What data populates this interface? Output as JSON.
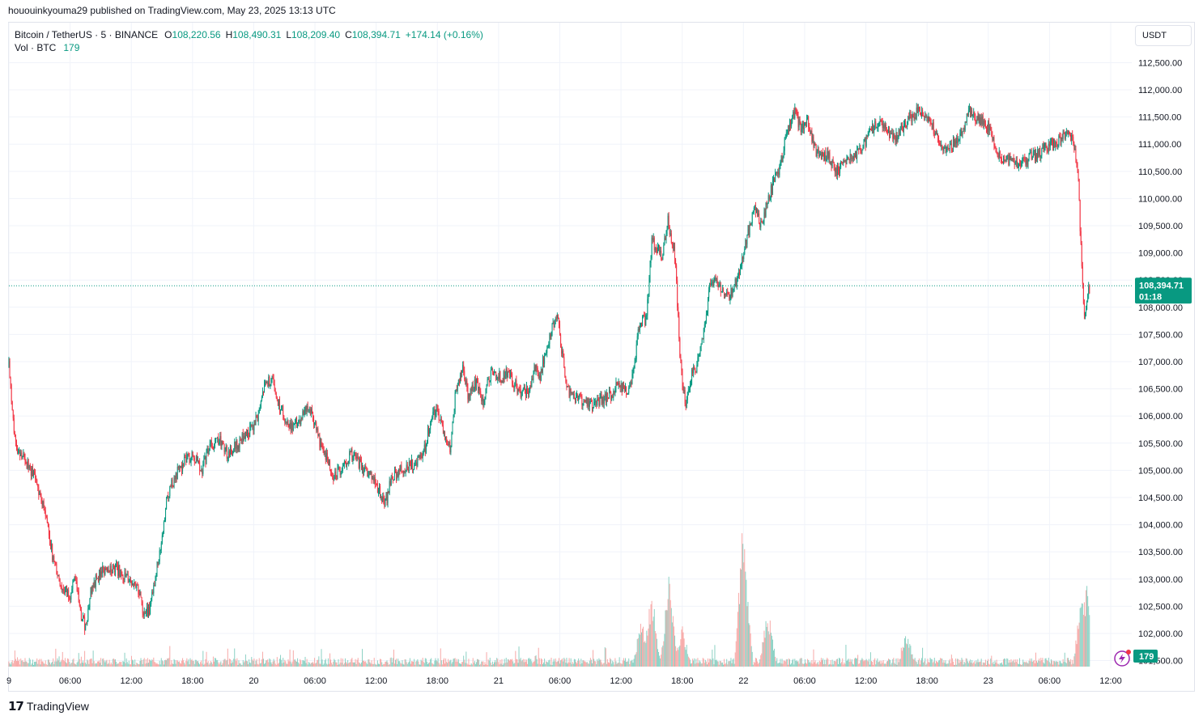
{
  "publish_info": "hououinkyouma29 published on TradingView.com, May 23, 2025 13:13 UTC",
  "legend": {
    "symbol": "Bitcoin / TetherUS · 5 · BINANCE",
    "open_label": "O",
    "open": "108,220.56",
    "high_label": "H",
    "high": "108,490.31",
    "low_label": "L",
    "low": "108,209.40",
    "close_label": "C",
    "close": "108,394.71",
    "change": "+174.14 (+0.16%)",
    "vol_label": "Vol · BTC",
    "vol_value": "179"
  },
  "currency_button": "USDT",
  "last_price": {
    "price": "108,394.71",
    "countdown": "01:18"
  },
  "volume_badge": "179",
  "branding": "TradingView",
  "colors": {
    "up": "#089981",
    "down": "#f23645",
    "up_vol": "#8cd1c4",
    "down_vol": "#f7a9a7",
    "grid": "#f0f3fa",
    "price_label_bg": "#089981"
  },
  "chart_data": {
    "type": "candlestick",
    "symbol": "Bitcoin / TetherUS",
    "interval": "5",
    "exchange": "BINANCE",
    "y_ticks": [
      101500,
      102000,
      102500,
      103000,
      103500,
      104000,
      104500,
      105000,
      105500,
      106000,
      106500,
      107000,
      107500,
      108000,
      108500,
      109000,
      109500,
      110000,
      110500,
      111000,
      111500,
      112000,
      112500
    ],
    "y_tick_labels": [
      "101,500.00",
      "102,000.00",
      "102,500.00",
      "103,000.00",
      "103,500.00",
      "104,000.00",
      "104,500.00",
      "105,000.00",
      "105,500.00",
      "106,000.00",
      "106,500.00",
      "107,000.00",
      "107,500.00",
      "108,000.00",
      "108,500.00",
      "109,000.00",
      "109,500.00",
      "110,000.00",
      "110,500.00",
      "111,000.00",
      "111,500.00",
      "112,000.00",
      "112,500.00"
    ],
    "x_ticks": [
      {
        "label": "9",
        "hours": 0
      },
      {
        "label": "06:00",
        "hours": 6
      },
      {
        "label": "12:00",
        "hours": 12
      },
      {
        "label": "18:00",
        "hours": 18
      },
      {
        "label": "20",
        "hours": 24
      },
      {
        "label": "06:00",
        "hours": 30
      },
      {
        "label": "12:00",
        "hours": 36
      },
      {
        "label": "18:00",
        "hours": 42
      },
      {
        "label": "21",
        "hours": 48
      },
      {
        "label": "06:00",
        "hours": 54
      },
      {
        "label": "12:00",
        "hours": 60
      },
      {
        "label": "18:00",
        "hours": 66
      },
      {
        "label": "22",
        "hours": 72
      },
      {
        "label": "06:00",
        "hours": 78
      },
      {
        "label": "12:00",
        "hours": 84
      },
      {
        "label": "18:00",
        "hours": 90
      },
      {
        "label": "23",
        "hours": 96
      },
      {
        "label": "06:00",
        "hours": 102
      },
      {
        "label": "12:00",
        "hours": 108
      }
    ],
    "price_path": [
      [
        0,
        106900
      ],
      [
        0.6,
        105500
      ],
      [
        1.5,
        105200
      ],
      [
        2.5,
        104900
      ],
      [
        3.5,
        104300
      ],
      [
        4.3,
        103400
      ],
      [
        5.2,
        102800
      ],
      [
        6,
        102700
      ],
      [
        6.5,
        103000
      ],
      [
        7,
        102400
      ],
      [
        7.5,
        102100
      ],
      [
        8,
        102700
      ],
      [
        8.5,
        103000
      ],
      [
        9.5,
        103200
      ],
      [
        10.5,
        103200
      ],
      [
        11.5,
        103000
      ],
      [
        12.5,
        102900
      ],
      [
        13.2,
        102400
      ],
      [
        13.8,
        102400
      ],
      [
        14.3,
        103000
      ],
      [
        15,
        103700
      ],
      [
        15.5,
        104500
      ],
      [
        16.3,
        104900
      ],
      [
        17,
        105100
      ],
      [
        18,
        105300
      ],
      [
        19,
        105000
      ],
      [
        19.5,
        105400
      ],
      [
        20.5,
        105600
      ],
      [
        21,
        105400
      ],
      [
        21.5,
        105300
      ],
      [
        22.5,
        105500
      ],
      [
        23.5,
        105700
      ],
      [
        24.5,
        106000
      ],
      [
        25,
        106500
      ],
      [
        25.8,
        106700
      ],
      [
        26.5,
        106200
      ],
      [
        27.5,
        105800
      ],
      [
        28.5,
        105900
      ],
      [
        29.3,
        106200
      ],
      [
        30,
        105900
      ],
      [
        30.5,
        105500
      ],
      [
        31,
        105300
      ],
      [
        31.8,
        104900
      ],
      [
        32.5,
        105000
      ],
      [
        33.5,
        105300
      ],
      [
        34,
        105200
      ],
      [
        34.8,
        105000
      ],
      [
        35.5,
        104900
      ],
      [
        36.3,
        104600
      ],
      [
        37,
        104400
      ],
      [
        37.5,
        104900
      ],
      [
        38.5,
        105000
      ],
      [
        39.5,
        105100
      ],
      [
        40.2,
        105200
      ],
      [
        40.8,
        105400
      ],
      [
        41.5,
        106100
      ],
      [
        42.2,
        106000
      ],
      [
        42.8,
        105600
      ],
      [
        43.3,
        105400
      ],
      [
        43.8,
        106500
      ],
      [
        44.5,
        106900
      ],
      [
        45,
        106400
      ],
      [
        45.8,
        106600
      ],
      [
        46.5,
        106200
      ],
      [
        47,
        106700
      ],
      [
        47.5,
        106800
      ],
      [
        48.3,
        106700
      ],
      [
        49,
        106800
      ],
      [
        49.5,
        106600
      ],
      [
        50.3,
        106400
      ],
      [
        51,
        106500
      ],
      [
        51.5,
        106900
      ],
      [
        52,
        106700
      ],
      [
        52.7,
        107200
      ],
      [
        53.3,
        107700
      ],
      [
        53.8,
        107800
      ],
      [
        54.2,
        107200
      ],
      [
        54.7,
        106500
      ],
      [
        55.5,
        106300
      ],
      [
        56.5,
        106300
      ],
      [
        57.5,
        106200
      ],
      [
        58,
        106300
      ],
      [
        59,
        106400
      ],
      [
        59.8,
        106600
      ],
      [
        60.6,
        106400
      ],
      [
        61.2,
        106800
      ],
      [
        61.8,
        107700
      ],
      [
        62.5,
        107800
      ],
      [
        63,
        109200
      ],
      [
        63.6,
        109100
      ],
      [
        64,
        108900
      ],
      [
        64.6,
        109600
      ],
      [
        65.3,
        108900
      ],
      [
        65.8,
        107000
      ],
      [
        66.3,
        106200
      ],
      [
        67,
        106800
      ],
      [
        67.6,
        107000
      ],
      [
        68.2,
        107600
      ],
      [
        68.8,
        108500
      ],
      [
        69.5,
        108400
      ],
      [
        70.3,
        108200
      ],
      [
        71,
        108300
      ],
      [
        71.6,
        108700
      ],
      [
        72,
        109000
      ],
      [
        72.5,
        109400
      ],
      [
        73,
        109800
      ],
      [
        73.8,
        109500
      ],
      [
        74.4,
        110000
      ],
      [
        75,
        110300
      ],
      [
        75.6,
        110600
      ],
      [
        76.2,
        111200
      ],
      [
        77,
        111600
      ],
      [
        77.6,
        111300
      ],
      [
        78.3,
        111400
      ],
      [
        79,
        110900
      ],
      [
        79.6,
        110800
      ],
      [
        80.3,
        110800
      ],
      [
        81,
        110500
      ],
      [
        81.7,
        110600
      ],
      [
        82.3,
        110800
      ],
      [
        83,
        110800
      ],
      [
        83.8,
        111000
      ],
      [
        84.4,
        111200
      ],
      [
        85.2,
        111400
      ],
      [
        86,
        111300
      ],
      [
        86.8,
        111100
      ],
      [
        87.5,
        111300
      ],
      [
        88.3,
        111500
      ],
      [
        89.2,
        111600
      ],
      [
        90,
        111500
      ],
      [
        90.6,
        111300
      ],
      [
        91.3,
        111000
      ],
      [
        92,
        110900
      ],
      [
        92.7,
        111000
      ],
      [
        93.4,
        111200
      ],
      [
        94.1,
        111600
      ],
      [
        94.8,
        111500
      ],
      [
        95.6,
        111400
      ],
      [
        96.3,
        111200
      ],
      [
        97,
        110800
      ],
      [
        97.7,
        110700
      ],
      [
        98.4,
        110700
      ],
      [
        99,
        110600
      ],
      [
        99.8,
        110700
      ],
      [
        100.6,
        110800
      ],
      [
        101.4,
        110900
      ],
      [
        102.2,
        111000
      ],
      [
        103,
        111100
      ],
      [
        103.7,
        111200
      ],
      [
        104.3,
        111100
      ],
      [
        104.8,
        110400
      ],
      [
        105.1,
        109000
      ],
      [
        105.4,
        107800
      ],
      [
        105.7,
        108200
      ],
      [
        106.0,
        108394.71
      ]
    ],
    "current_price": 108394.71,
    "ylim": [
      101300,
      112700
    ],
    "xlim_hours": [
      0,
      108
    ],
    "volume_max_btc": 1000,
    "volume_spikes": [
      {
        "hours": 63.0,
        "btc": 520
      },
      {
        "hours": 64.7,
        "btc": 600
      },
      {
        "hours": 72.0,
        "btc": 1000
      },
      {
        "hours": 74.4,
        "btc": 380
      },
      {
        "hours": 105.2,
        "btc": 520
      },
      {
        "hours": 105.6,
        "btc": 580
      },
      {
        "hours": 88.0,
        "btc": 230
      },
      {
        "hours": 62.0,
        "btc": 320
      },
      {
        "hours": 66.0,
        "btc": 280
      }
    ]
  }
}
